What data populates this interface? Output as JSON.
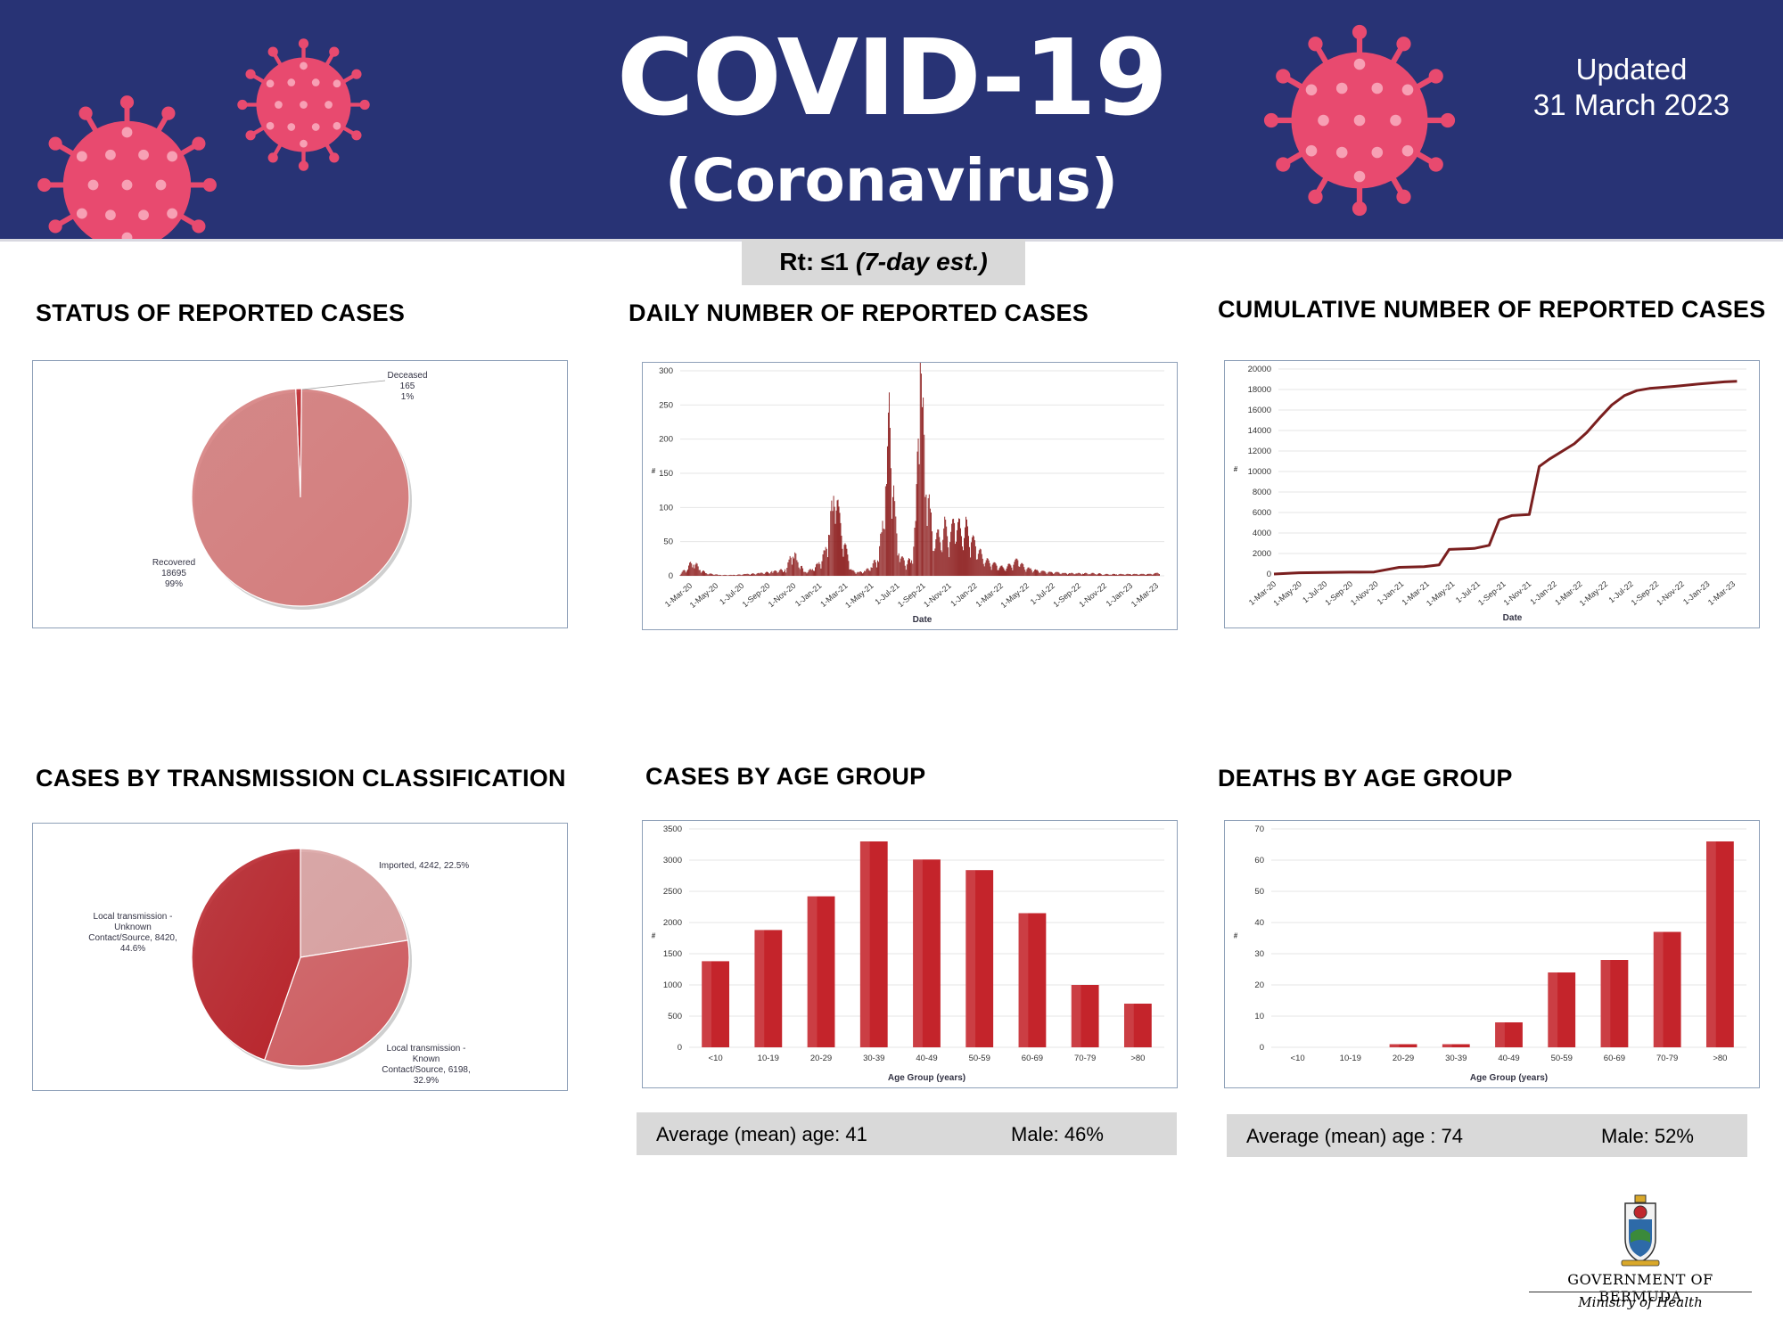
{
  "header": {
    "title": "COVID-19",
    "subtitle": "(Coronavirus)",
    "updated_label": "Updated",
    "updated_date": "31 March 2023",
    "colors": {
      "banner": "#283375",
      "virus": "#e84a6f"
    }
  },
  "rt": {
    "label": "Rt: ≤1",
    "estimate": "(7-day est.)"
  },
  "sections": {
    "status": "STATUS OF REPORTED CASES",
    "daily": "DAILY NUMBER OF REPORTED CASES",
    "cumulative": "CUMULATIVE NUMBER OF REPORTED CASES",
    "transmission": "CASES BY TRANSMISSION CLASSIFICATION",
    "age_cases": "CASES BY AGE GROUP",
    "age_deaths": "DEATHS BY AGE GROUP"
  },
  "chart_data": {
    "status": {
      "type": "pie",
      "slices": [
        {
          "name": "Deceased",
          "value": 165,
          "pct": "1%",
          "color": "#c0272d"
        },
        {
          "name": "Recovered",
          "value": 18695,
          "pct": "99%",
          "color": "#d47c7c"
        }
      ]
    },
    "daily": {
      "type": "bar",
      "xlabel": "Date",
      "ylabel": "#",
      "ylim": [
        0,
        300
      ],
      "yticks": [
        0,
        50,
        100,
        150,
        200,
        250,
        300
      ],
      "xticks": [
        "1-Mar-20",
        "1-May-20",
        "1-Jul-20",
        "1-Sep-20",
        "1-Nov-20",
        "1-Jan-21",
        "1-Mar-21",
        "1-May-21",
        "1-Jul-21",
        "1-Sep-21",
        "1-Nov-21",
        "1-Jan-22",
        "1-Mar-22",
        "1-May-22",
        "1-Jul-22",
        "1-Sep-22",
        "1-Nov-22",
        "1-Jan-23",
        "1-Mar-23"
      ],
      "series_points": [
        [
          0,
          2
        ],
        [
          0.5,
          10
        ],
        [
          1,
          18
        ],
        [
          1.5,
          8
        ],
        [
          2,
          3
        ],
        [
          3,
          1
        ],
        [
          4,
          1
        ],
        [
          5,
          2
        ],
        [
          6,
          3
        ],
        [
          7,
          5
        ],
        [
          8,
          8
        ],
        [
          8.3,
          20
        ],
        [
          8.6,
          30
        ],
        [
          8.9,
          15
        ],
        [
          9.5,
          5
        ],
        [
          10,
          8
        ],
        [
          10.5,
          15
        ],
        [
          11,
          30
        ],
        [
          11.3,
          60
        ],
        [
          11.6,
          95
        ],
        [
          11.8,
          115
        ],
        [
          12,
          70
        ],
        [
          12.4,
          40
        ],
        [
          12.8,
          15
        ],
        [
          13,
          6
        ],
        [
          13.5,
          4
        ],
        [
          14,
          6
        ],
        [
          14.5,
          12
        ],
        [
          15,
          25
        ],
        [
          15.3,
          60
        ],
        [
          15.6,
          120
        ],
        [
          15.8,
          190
        ],
        [
          16,
          130
        ],
        [
          16.3,
          60
        ],
        [
          16.6,
          25
        ],
        [
          17,
          15
        ],
        [
          17.5,
          20
        ],
        [
          17.8,
          60
        ],
        [
          18,
          160
        ],
        [
          18.15,
          265
        ],
        [
          18.3,
          200
        ],
        [
          18.6,
          120
        ],
        [
          18.9,
          70
        ],
        [
          19.2,
          55
        ],
        [
          19.6,
          45
        ],
        [
          20,
          60
        ],
        [
          20.4,
          45
        ],
        [
          20.8,
          70
        ],
        [
          21.2,
          55
        ],
        [
          21.6,
          60
        ],
        [
          22,
          45
        ],
        [
          22.4,
          35
        ],
        [
          22.8,
          25
        ],
        [
          23.2,
          18
        ],
        [
          23.6,
          15
        ],
        [
          24,
          12
        ],
        [
          24.4,
          10
        ],
        [
          24.8,
          12
        ],
        [
          25.2,
          15
        ],
        [
          25.6,
          20
        ],
        [
          26,
          10
        ],
        [
          26.5,
          8
        ],
        [
          27,
          6
        ],
        [
          27.5,
          5
        ],
        [
          28,
          4
        ],
        [
          28.5,
          4
        ],
        [
          29,
          3
        ],
        [
          29.5,
          3
        ],
        [
          30,
          3
        ],
        [
          30.5,
          3
        ],
        [
          31,
          3
        ],
        [
          31.5,
          3
        ],
        [
          32,
          2
        ],
        [
          32.5,
          2
        ],
        [
          33,
          2
        ],
        [
          33.5,
          2
        ],
        [
          34,
          2
        ],
        [
          34.5,
          2
        ],
        [
          35,
          2
        ],
        [
          35.5,
          2
        ],
        [
          36,
          3
        ],
        [
          36.3,
          4
        ]
      ],
      "color": "#8b1a1a"
    },
    "cumulative": {
      "type": "line",
      "xlabel": "Date",
      "ylabel": "#",
      "ylim": [
        0,
        20000
      ],
      "yticks": [
        0,
        2000,
        4000,
        6000,
        8000,
        10000,
        12000,
        14000,
        16000,
        18000,
        20000
      ],
      "xticks": [
        "1-Mar-20",
        "1-May-20",
        "1-Jul-20",
        "1-Sep-20",
        "1-Nov-20",
        "1-Jan-21",
        "1-Mar-21",
        "1-May-21",
        "1-Jul-21",
        "1-Sep-21",
        "1-Nov-21",
        "1-Jan-22",
        "1-Mar-22",
        "1-May-22",
        "1-Jul-22",
        "1-Sep-22",
        "1-Nov-22",
        "1-Jan-23",
        "1-Mar-23"
      ],
      "series_points": [
        [
          0,
          0
        ],
        [
          1,
          120
        ],
        [
          2,
          150
        ],
        [
          3,
          180
        ],
        [
          4,
          200
        ],
        [
          5,
          650
        ],
        [
          6,
          720
        ],
        [
          6.6,
          900
        ],
        [
          7,
          2400
        ],
        [
          8,
          2500
        ],
        [
          8.6,
          2800
        ],
        [
          9,
          5300
        ],
        [
          9.5,
          5700
        ],
        [
          10.2,
          5800
        ],
        [
          10.6,
          10500
        ],
        [
          11,
          11200
        ],
        [
          12,
          12700
        ],
        [
          12.5,
          13800
        ],
        [
          13,
          15200
        ],
        [
          13.5,
          16500
        ],
        [
          14,
          17400
        ],
        [
          14.5,
          17900
        ],
        [
          15,
          18100
        ],
        [
          16,
          18300
        ],
        [
          17,
          18550
        ],
        [
          18,
          18750
        ],
        [
          18.5,
          18800
        ]
      ],
      "color": "#7a1f1f"
    },
    "transmission": {
      "type": "pie",
      "slices": [
        {
          "name": "Imported, 4242, 22.5%",
          "value": 4242,
          "pct": "22.5%",
          "color": "#d9a0a0"
        },
        {
          "name": "Local transmission - Known Contact/Source, 6198, 32.9%",
          "value": 6198,
          "pct": "32.9%",
          "color": "#cf5a5e"
        },
        {
          "name": "Local transmission - Unknown Contact/Source, 8420, 44.6%",
          "value": 8420,
          "pct": "44.6%",
          "color": "#b8242b"
        }
      ],
      "labels": {
        "imported": "Imported, 4242, 22.5%",
        "known": [
          "Local transmission -",
          "Known",
          "Contact/Source, 6198,",
          "32.9%"
        ],
        "unknown": [
          "Local transmission -",
          "Unknown",
          "Contact/Source, 8420,",
          "44.6%"
        ]
      }
    },
    "age_cases": {
      "type": "bar",
      "xlabel": "Age Group (years)",
      "ylabel": "#",
      "ylim": [
        0,
        3500
      ],
      "yticks": [
        0,
        500,
        1000,
        1500,
        2000,
        2500,
        3000,
        3500
      ],
      "categories": [
        "<10",
        "10-19",
        "20-29",
        "30-39",
        "40-49",
        "50-59",
        "60-69",
        "70-79",
        ">80"
      ],
      "values": [
        1380,
        1880,
        2420,
        3300,
        3010,
        2840,
        2150,
        1000,
        700
      ],
      "color": "#c4242b"
    },
    "age_deaths": {
      "type": "bar",
      "xlabel": "Age Group (years)",
      "ylabel": "#",
      "ylim": [
        0,
        70
      ],
      "yticks": [
        0,
        10,
        20,
        30,
        40,
        50,
        60,
        70
      ],
      "categories": [
        "<10",
        "10-19",
        "20-29",
        "30-39",
        "40-49",
        "50-59",
        "60-69",
        "70-79",
        ">80"
      ],
      "values": [
        0,
        0,
        1,
        1,
        8,
        24,
        28,
        37,
        66
      ],
      "color": "#c4242b"
    }
  },
  "stats": {
    "cases_mean_age": "Average (mean) age: 41",
    "cases_male": "Male: 46%",
    "deaths_mean_age": "Average (mean) age : 74",
    "deaths_male": "Male: 52%"
  },
  "footer": {
    "gov_name": "GOVERNMENT OF BERMUDA",
    "ministry": "Ministry of Health"
  }
}
